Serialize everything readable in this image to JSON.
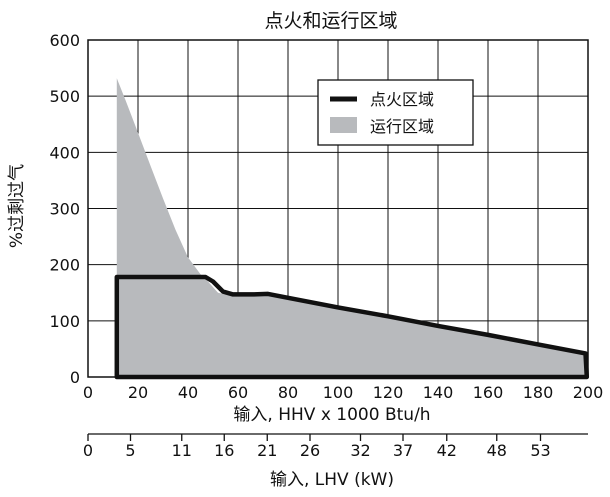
{
  "chart_data": {
    "type": "area",
    "title": "点火和运行区域",
    "ylabel": "%过剩过气",
    "xlabel": "输入, HHV x 1000 Btu/h",
    "xlabel2": "输入, LHV (kW)",
    "xlim": [
      0,
      200
    ],
    "ylim": [
      0,
      600
    ],
    "grid": true,
    "legend_position": "upper-right",
    "y_ticks": [
      0,
      100,
      200,
      300,
      400,
      500,
      600
    ],
    "x_ticks": [
      0,
      20,
      40,
      60,
      80,
      100,
      120,
      140,
      160,
      180,
      200
    ],
    "x2_ticks": [
      {
        "x": 0,
        "label": "0"
      },
      {
        "x": 17,
        "label": "5"
      },
      {
        "x": 37.5,
        "label": "11"
      },
      {
        "x": 54.5,
        "label": "16"
      },
      {
        "x": 71.7,
        "label": "21"
      },
      {
        "x": 88.8,
        "label": "26"
      },
      {
        "x": 109,
        "label": "32"
      },
      {
        "x": 126,
        "label": "37"
      },
      {
        "x": 143.5,
        "label": "42"
      },
      {
        "x": 163.5,
        "label": "48"
      },
      {
        "x": 181,
        "label": "53"
      }
    ],
    "series": [
      {
        "name": "点火区域",
        "style": "outline",
        "color": "#111111",
        "points": [
          [
            11.5,
            0
          ],
          [
            11.5,
            178
          ],
          [
            47,
            178
          ],
          [
            50,
            170
          ],
          [
            54,
            152
          ],
          [
            58,
            147
          ],
          [
            66,
            147
          ],
          [
            72,
            148
          ],
          [
            80,
            141
          ],
          [
            100,
            124
          ],
          [
            120,
            108
          ],
          [
            140,
            91
          ],
          [
            160,
            75
          ],
          [
            180,
            58
          ],
          [
            199,
            42
          ],
          [
            199.5,
            0
          ]
        ]
      },
      {
        "name": "运行区域",
        "style": "fill",
        "color": "#b8babd",
        "points": [
          [
            11.5,
            0
          ],
          [
            11.5,
            532
          ],
          [
            15,
            493
          ],
          [
            20,
            435
          ],
          [
            25,
            376
          ],
          [
            30,
            318
          ],
          [
            35,
            262
          ],
          [
            40,
            213
          ],
          [
            45,
            183
          ],
          [
            48,
            170
          ],
          [
            52,
            150
          ],
          [
            56,
            146
          ],
          [
            66,
            147
          ],
          [
            72,
            148
          ],
          [
            80,
            141
          ],
          [
            100,
            124
          ],
          [
            120,
            108
          ],
          [
            140,
            91
          ],
          [
            160,
            75
          ],
          [
            180,
            58
          ],
          [
            199,
            42
          ],
          [
            199.5,
            0
          ]
        ]
      }
    ]
  }
}
